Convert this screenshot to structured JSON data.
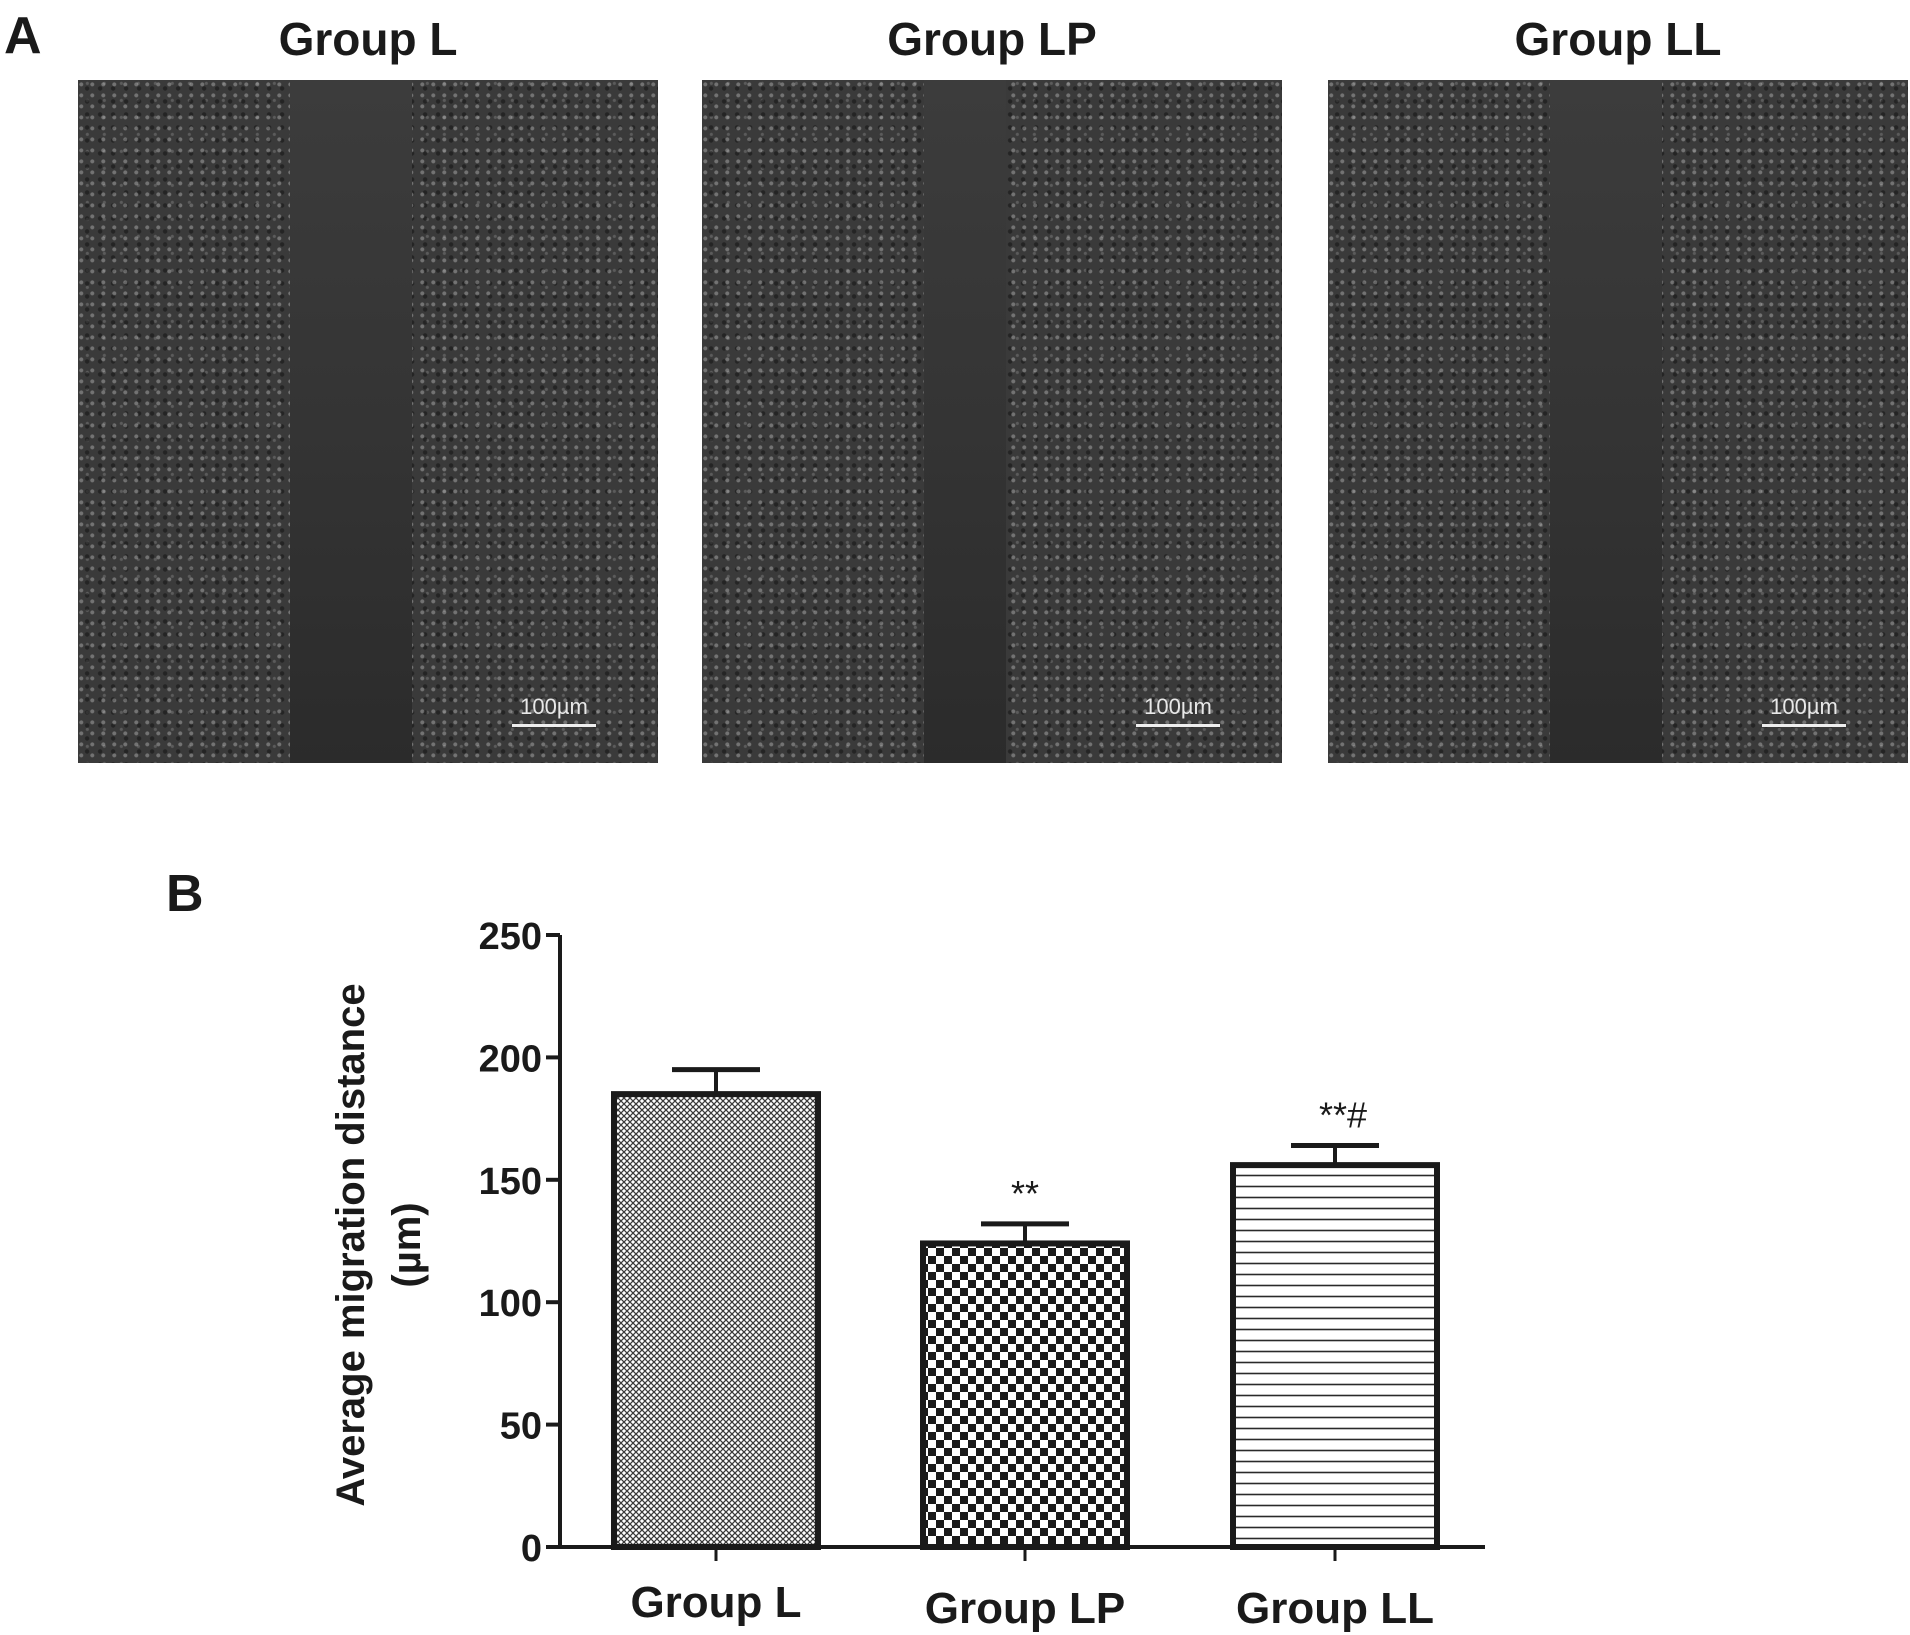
{
  "panel_a": {
    "letter": "A",
    "groups": [
      {
        "title": "Group L",
        "scale_label": "100µm"
      },
      {
        "title": "Group LP",
        "scale_label": "100µm"
      },
      {
        "title": "Group LL",
        "scale_label": "100µm"
      }
    ]
  },
  "panel_b": {
    "letter": "B"
  },
  "chart_data": {
    "type": "bar",
    "categories": [
      "Group L",
      "Group LP",
      "Group LL"
    ],
    "values": [
      185,
      124,
      156
    ],
    "errors": [
      10,
      8,
      8
    ],
    "annotations": [
      "",
      "**",
      "**#"
    ],
    "ylabel_line1": "Average migration distance",
    "ylabel_line2": "(µm)",
    "ylim": [
      0,
      250
    ],
    "yticks": [
      0,
      50,
      100,
      150,
      200,
      250
    ],
    "grid": false,
    "bar_patterns": [
      "fine-crosshatch",
      "checkerboard",
      "horizontal-lines"
    ]
  }
}
